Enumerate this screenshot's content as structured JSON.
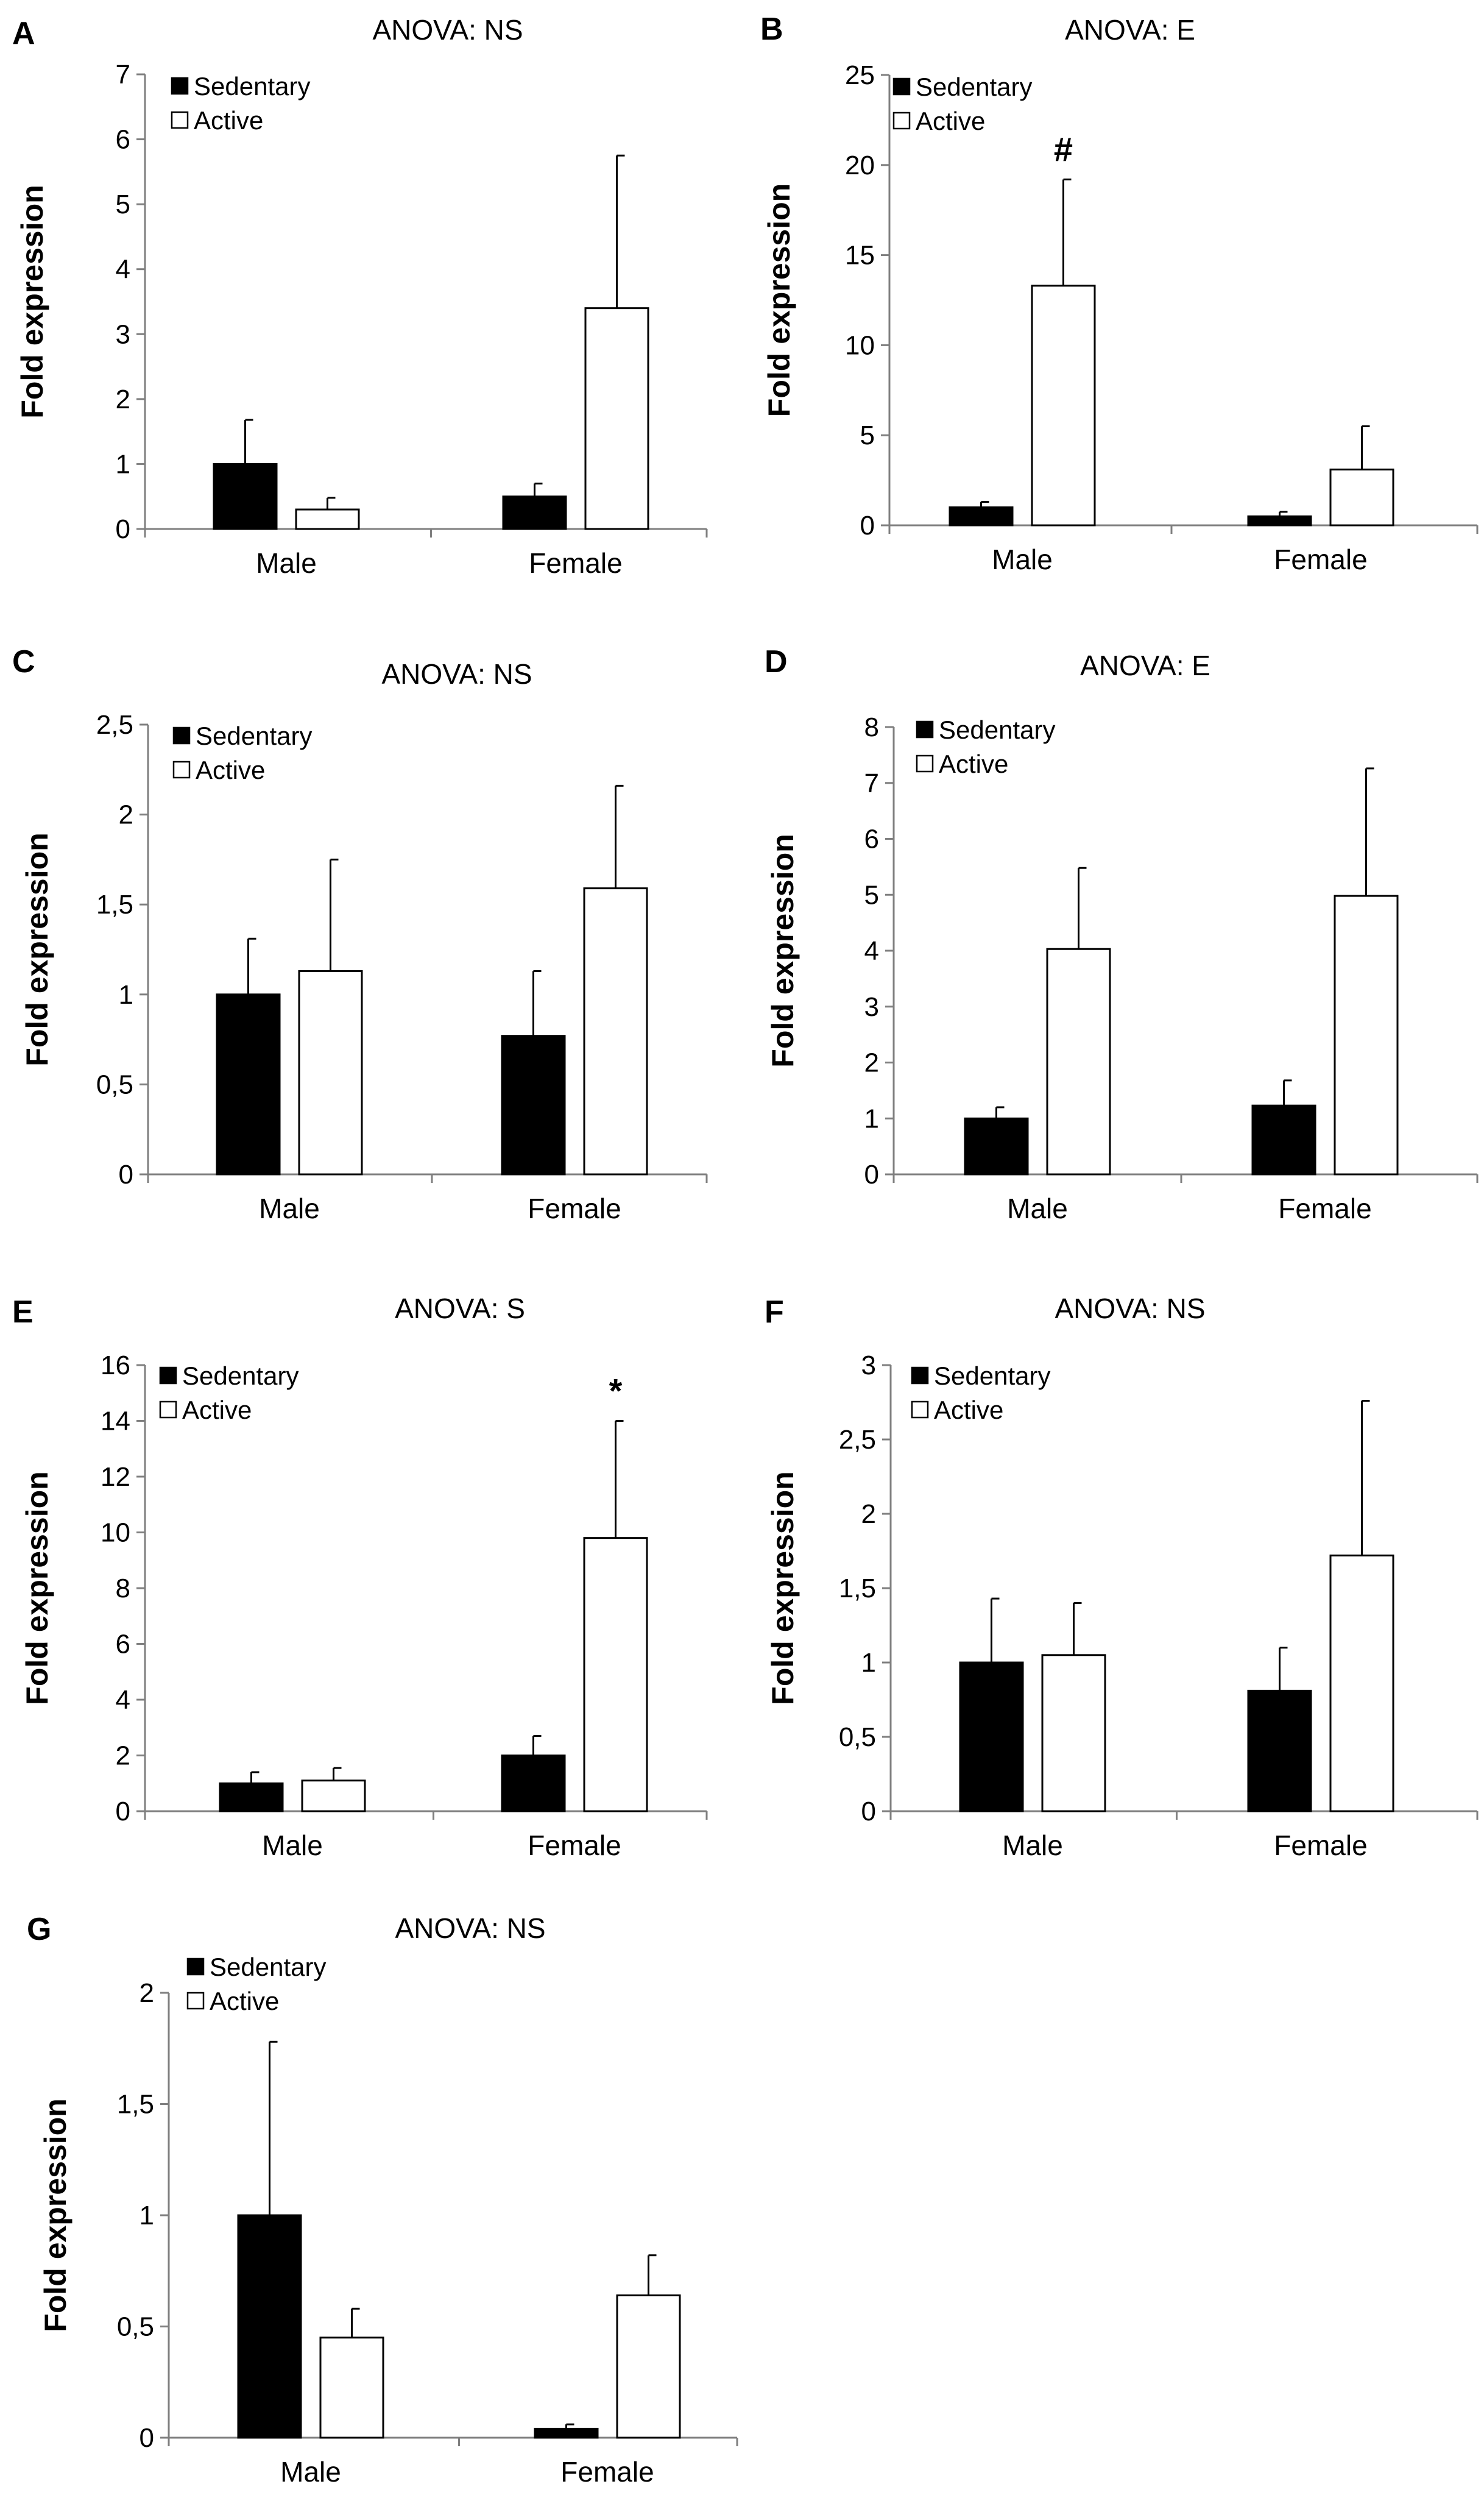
{
  "chart_data": [
    {
      "panel": "A",
      "type": "bar",
      "title": "ANOVA: NS",
      "ylabel": "Fold expression",
      "categories": [
        "Male",
        "Female"
      ],
      "ylim": [
        0,
        7
      ],
      "yticks": [
        "0",
        "1",
        "2",
        "3",
        "4",
        "5",
        "6",
        "7"
      ],
      "legend": "top-left",
      "series": [
        {
          "name": "Sedentary",
          "values": [
            1.0,
            0.5
          ],
          "errors": [
            0.68,
            0.2
          ]
        },
        {
          "name": "Active",
          "values": [
            0.3,
            3.4
          ],
          "errors": [
            0.18,
            2.35
          ]
        }
      ],
      "annotations": []
    },
    {
      "panel": "B",
      "type": "bar",
      "title": "ANOVA: E",
      "ylabel": "Fold expression",
      "categories": [
        "Male",
        "Female"
      ],
      "ylim": [
        0,
        25
      ],
      "yticks": [
        "0",
        "5",
        "10",
        "15",
        "20",
        "25"
      ],
      "legend": "top-left",
      "series": [
        {
          "name": "Sedentary",
          "values": [
            1.0,
            0.5
          ],
          "errors": [
            0.3,
            0.25
          ]
        },
        {
          "name": "Active",
          "values": [
            13.3,
            3.1
          ],
          "errors": [
            5.9,
            2.4
          ]
        }
      ],
      "annotations": [
        {
          "text": "#",
          "series": 1,
          "category": 0
        }
      ]
    },
    {
      "panel": "C",
      "type": "bar",
      "title": "ANOVA: NS",
      "ylabel": "Fold expression",
      "categories": [
        "Male",
        "Female"
      ],
      "ylim": [
        0,
        2.5
      ],
      "yticks": [
        "0",
        "0,5",
        "1",
        "1,5",
        "2",
        "2,5"
      ],
      "legend": "top-left",
      "series": [
        {
          "name": "Sedentary",
          "values": [
            1.0,
            0.77
          ],
          "errors": [
            0.31,
            0.36
          ]
        },
        {
          "name": "Active",
          "values": [
            1.13,
            1.59
          ],
          "errors": [
            0.62,
            0.57
          ]
        }
      ],
      "annotations": []
    },
    {
      "panel": "D",
      "type": "bar",
      "title": "ANOVA: E",
      "ylabel": "Fold expression",
      "categories": [
        "Male",
        "Female"
      ],
      "ylim": [
        0,
        8
      ],
      "yticks": [
        "0",
        "1",
        "2",
        "3",
        "4",
        "5",
        "6",
        "7",
        "8"
      ],
      "legend": "top-left",
      "series": [
        {
          "name": "Sedentary",
          "values": [
            1.0,
            1.23
          ],
          "errors": [
            0.2,
            0.45
          ]
        },
        {
          "name": "Active",
          "values": [
            4.03,
            4.98
          ],
          "errors": [
            1.45,
            2.28
          ]
        }
      ],
      "annotations": []
    },
    {
      "panel": "E",
      "type": "bar",
      "title": "ANOVA: S",
      "ylabel": "Fold expression",
      "categories": [
        "Male",
        "Female"
      ],
      "ylim": [
        0,
        16
      ],
      "yticks": [
        "0",
        "2",
        "4",
        "6",
        "8",
        "10",
        "12",
        "14",
        "16"
      ],
      "legend": "top-left",
      "series": [
        {
          "name": "Sedentary",
          "values": [
            1.0,
            2.0
          ],
          "errors": [
            0.4,
            0.7
          ]
        },
        {
          "name": "Active",
          "values": [
            1.1,
            9.8
          ],
          "errors": [
            0.45,
            4.2
          ]
        }
      ],
      "annotations": [
        {
          "text": "*",
          "series": 1,
          "category": 1
        }
      ]
    },
    {
      "panel": "F",
      "type": "bar",
      "title": "ANOVA: NS",
      "ylabel": "Fold expression",
      "categories": [
        "Male",
        "Female"
      ],
      "ylim": [
        0,
        3
      ],
      "yticks": [
        "0",
        "0,5",
        "1",
        "1,5",
        "2",
        "2,5",
        "3"
      ],
      "legend": "top-left",
      "series": [
        {
          "name": "Sedentary",
          "values": [
            1.0,
            0.81
          ],
          "errors": [
            0.43,
            0.29
          ]
        },
        {
          "name": "Active",
          "values": [
            1.05,
            1.72
          ],
          "errors": [
            0.35,
            1.04
          ]
        }
      ],
      "annotations": []
    },
    {
      "panel": "G",
      "type": "bar",
      "title": "ANOVA: NS",
      "ylabel": "Fold expression",
      "categories": [
        "Male",
        "Female"
      ],
      "ylim": [
        0,
        2
      ],
      "yticks": [
        "0",
        "0,5",
        "1",
        "1,5",
        "2"
      ],
      "legend": "top-left",
      "series": [
        {
          "name": "Sedentary",
          "values": [
            1.0,
            0.04
          ],
          "errors": [
            0.78,
            0.02
          ]
        },
        {
          "name": "Active",
          "values": [
            0.45,
            0.64
          ],
          "errors": [
            0.13,
            0.18
          ]
        }
      ],
      "annotations": []
    }
  ]
}
